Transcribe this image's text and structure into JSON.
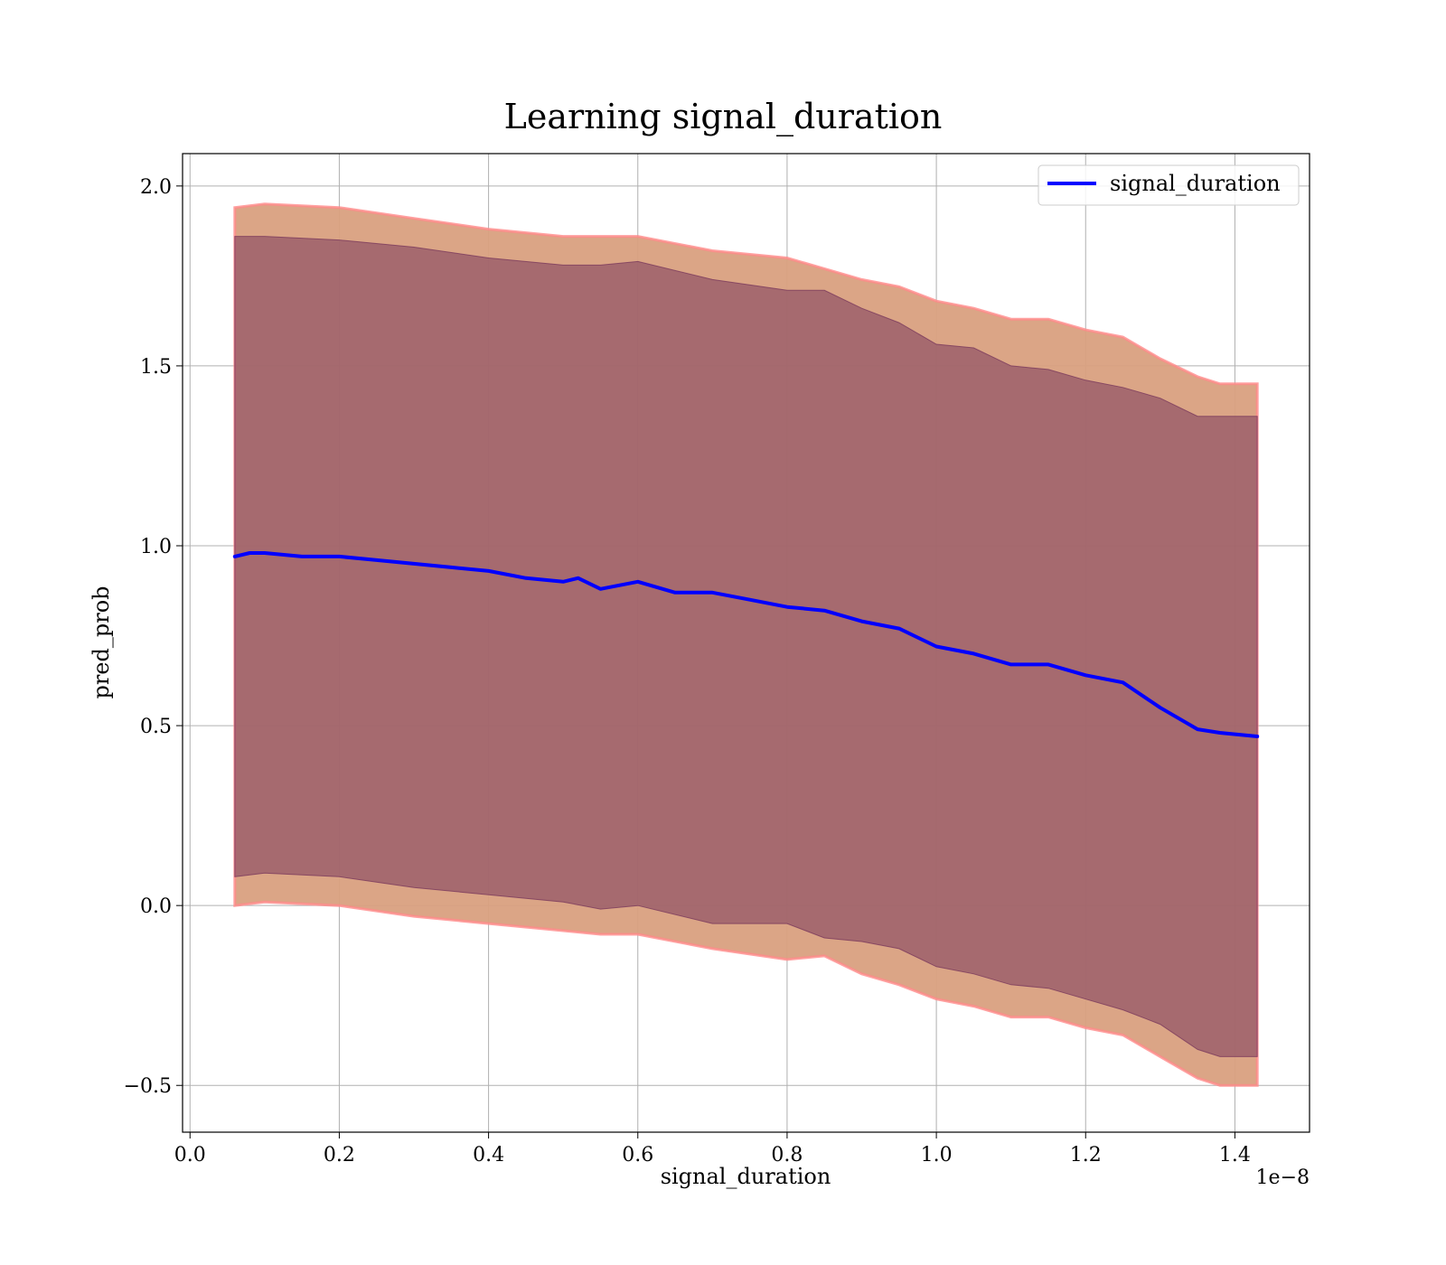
{
  "chart_data": {
    "type": "line",
    "title": "Learning signal_duration",
    "xlabel": "signal_duration",
    "ylabel": "pred_prob",
    "x_offset_text": "1e−8",
    "xlim": [
      -0.01,
      1.5
    ],
    "ylim": [
      -0.63,
      2.09
    ],
    "x_ticks": [
      0.0,
      0.2,
      0.4,
      0.6,
      0.8,
      1.0,
      1.2,
      1.4
    ],
    "x_tick_labels": [
      "0.0",
      "0.2",
      "0.4",
      "0.6",
      "0.8",
      "1.0",
      "1.2",
      "1.4"
    ],
    "y_ticks": [
      -0.5,
      0.0,
      0.5,
      1.0,
      1.5,
      2.0
    ],
    "y_tick_labels": [
      "−0.5",
      "0.0",
      "0.5",
      "1.0",
      "1.5",
      "2.0"
    ],
    "grid": true,
    "legend": {
      "location": "upper right",
      "entries": [
        "signal_duration"
      ]
    },
    "series": [
      {
        "name": "signal_duration",
        "color": "#0000ff",
        "x": [
          0.06,
          0.08,
          0.1,
          0.15,
          0.2,
          0.25,
          0.3,
          0.35,
          0.4,
          0.45,
          0.5,
          0.52,
          0.55,
          0.6,
          0.65,
          0.7,
          0.75,
          0.8,
          0.85,
          0.9,
          0.95,
          1.0,
          1.05,
          1.1,
          1.15,
          1.2,
          1.25,
          1.3,
          1.35,
          1.38,
          1.43
        ],
        "y": [
          0.97,
          0.98,
          0.98,
          0.97,
          0.97,
          0.96,
          0.95,
          0.94,
          0.93,
          0.91,
          0.9,
          0.91,
          0.88,
          0.9,
          0.87,
          0.87,
          0.85,
          0.83,
          0.82,
          0.79,
          0.77,
          0.72,
          0.7,
          0.67,
          0.67,
          0.64,
          0.62,
          0.55,
          0.49,
          0.48,
          0.47
        ]
      }
    ],
    "bands": [
      {
        "name": "band-outer",
        "color": "#d9a080",
        "edge_color": "#ff8a8a",
        "x": [
          0.06,
          0.1,
          0.2,
          0.3,
          0.4,
          0.5,
          0.55,
          0.6,
          0.7,
          0.8,
          0.85,
          0.9,
          0.95,
          1.0,
          1.05,
          1.1,
          1.15,
          1.2,
          1.25,
          1.3,
          1.35,
          1.38,
          1.43
        ],
        "upper": [
          1.94,
          1.95,
          1.94,
          1.91,
          1.88,
          1.86,
          1.86,
          1.86,
          1.82,
          1.8,
          1.77,
          1.74,
          1.72,
          1.68,
          1.66,
          1.63,
          1.63,
          1.6,
          1.58,
          1.52,
          1.47,
          1.45,
          1.45
        ],
        "lower": [
          0.0,
          0.01,
          0.0,
          -0.03,
          -0.05,
          -0.07,
          -0.08,
          -0.08,
          -0.12,
          -0.15,
          -0.14,
          -0.19,
          -0.22,
          -0.26,
          -0.28,
          -0.31,
          -0.31,
          -0.34,
          -0.36,
          -0.42,
          -0.48,
          -0.5,
          -0.5
        ]
      },
      {
        "name": "band-inner",
        "color": "#7a3a5c",
        "x": [
          0.06,
          0.1,
          0.2,
          0.3,
          0.4,
          0.5,
          0.55,
          0.6,
          0.7,
          0.8,
          0.85,
          0.9,
          0.95,
          1.0,
          1.05,
          1.1,
          1.15,
          1.2,
          1.25,
          1.3,
          1.35,
          1.38,
          1.43
        ],
        "upper": [
          1.86,
          1.86,
          1.85,
          1.83,
          1.8,
          1.78,
          1.78,
          1.79,
          1.74,
          1.71,
          1.71,
          1.66,
          1.62,
          1.56,
          1.55,
          1.5,
          1.49,
          1.46,
          1.44,
          1.41,
          1.36,
          1.36,
          1.36
        ],
        "lower": [
          0.08,
          0.09,
          0.08,
          0.05,
          0.03,
          0.01,
          -0.01,
          0.0,
          -0.05,
          -0.05,
          -0.09,
          -0.1,
          -0.12,
          -0.17,
          -0.19,
          -0.22,
          -0.23,
          -0.26,
          -0.29,
          -0.33,
          -0.4,
          -0.42,
          -0.42
        ]
      }
    ]
  }
}
